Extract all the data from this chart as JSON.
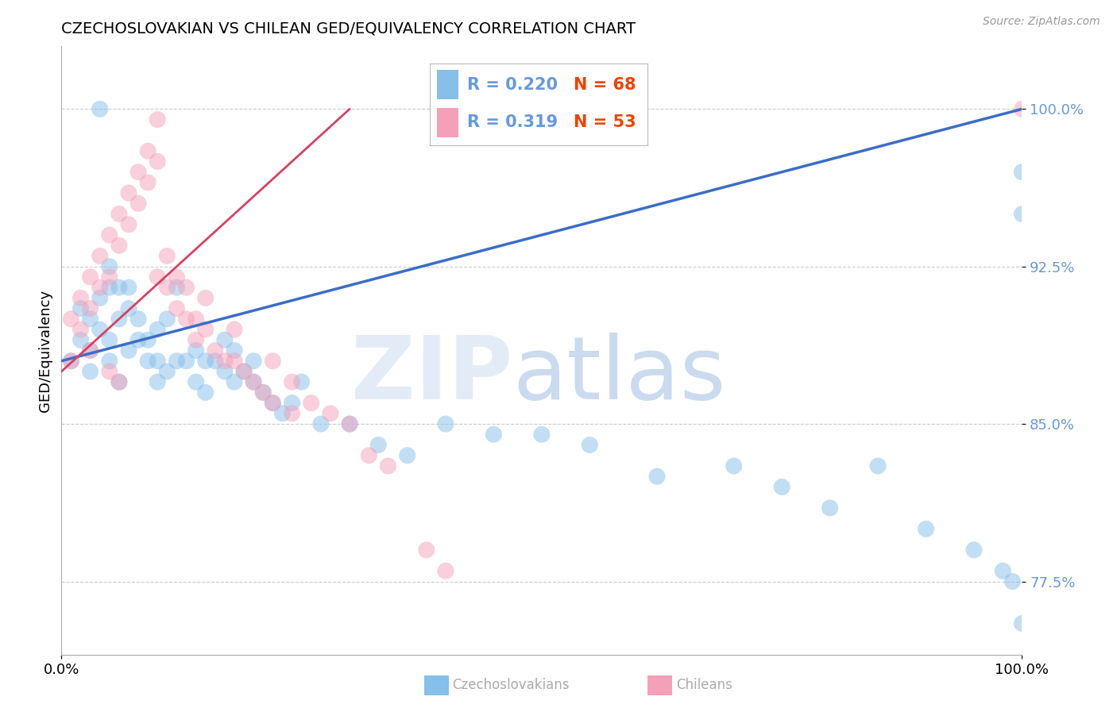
{
  "title": "CZECHOSLOVAKIAN VS CHILEAN GED/EQUIVALENCY CORRELATION CHART",
  "source": "Source: ZipAtlas.com",
  "ylabel": "GED/Equivalency",
  "xlim": [
    0,
    100
  ],
  "ylim": [
    74,
    103
  ],
  "yticks": [
    77.5,
    85.0,
    92.5,
    100.0
  ],
  "xticks": [
    0,
    100
  ],
  "xticklabels": [
    "0.0%",
    "100.0%"
  ],
  "legend_r1": "R = 0.220",
  "legend_n1": "N = 68",
  "legend_r2": "R = 0.319",
  "legend_n2": "N = 53",
  "legend_label1": "Czechoslovakians",
  "legend_label2": "Chileans",
  "blue_color": "#85BFEA",
  "pink_color": "#F4A0B8",
  "blue_line_color": "#3B6DC8",
  "pink_line_color": "#D94060",
  "ytick_color": "#6699DD",
  "grid_color": "#CCCCCC",
  "blue_trend": [
    0,
    88.0,
    100,
    100.0
  ],
  "pink_trend": [
    0,
    87.5,
    30,
    100.0
  ],
  "blue_x": [
    1,
    2,
    2,
    3,
    3,
    3,
    4,
    4,
    4,
    5,
    5,
    5,
    5,
    6,
    6,
    6,
    7,
    7,
    7,
    8,
    8,
    9,
    9,
    10,
    10,
    10,
    11,
    11,
    12,
    12,
    13,
    14,
    14,
    15,
    15,
    16,
    17,
    17,
    18,
    18,
    19,
    20,
    20,
    21,
    22,
    23,
    24,
    25,
    27,
    30,
    33,
    36,
    40,
    45,
    50,
    55,
    62,
    70,
    75,
    80,
    85,
    90,
    95,
    98,
    99,
    100,
    100,
    100
  ],
  "blue_y": [
    88.0,
    89.0,
    90.5,
    87.5,
    88.5,
    90.0,
    89.5,
    91.0,
    100.0,
    91.5,
    92.5,
    88.0,
    89.0,
    90.0,
    91.5,
    87.0,
    88.5,
    90.5,
    91.5,
    89.0,
    90.0,
    88.0,
    89.0,
    87.0,
    88.0,
    89.5,
    87.5,
    90.0,
    88.0,
    91.5,
    88.0,
    87.0,
    88.5,
    86.5,
    88.0,
    88.0,
    87.5,
    89.0,
    87.0,
    88.5,
    87.5,
    87.0,
    88.0,
    86.5,
    86.0,
    85.5,
    86.0,
    87.0,
    85.0,
    85.0,
    84.0,
    83.5,
    85.0,
    84.5,
    84.5,
    84.0,
    82.5,
    83.0,
    82.0,
    81.0,
    83.0,
    80.0,
    79.0,
    78.0,
    77.5,
    75.5,
    95.0,
    97.0
  ],
  "pink_x": [
    1,
    1,
    2,
    2,
    3,
    3,
    3,
    4,
    4,
    5,
    5,
    5,
    6,
    6,
    6,
    7,
    7,
    8,
    8,
    9,
    9,
    10,
    10,
    10,
    11,
    11,
    12,
    12,
    13,
    13,
    14,
    14,
    15,
    15,
    16,
    17,
    18,
    18,
    19,
    20,
    21,
    22,
    22,
    24,
    24,
    26,
    28,
    30,
    32,
    34,
    38,
    40,
    100
  ],
  "pink_y": [
    88.0,
    90.0,
    89.5,
    91.0,
    90.5,
    92.0,
    88.5,
    91.5,
    93.0,
    92.0,
    94.0,
    87.5,
    93.5,
    95.0,
    87.0,
    94.5,
    96.0,
    95.5,
    97.0,
    96.5,
    98.0,
    92.0,
    97.5,
    99.5,
    91.5,
    93.0,
    90.5,
    92.0,
    90.0,
    91.5,
    89.0,
    90.0,
    89.5,
    91.0,
    88.5,
    88.0,
    88.0,
    89.5,
    87.5,
    87.0,
    86.5,
    86.0,
    88.0,
    85.5,
    87.0,
    86.0,
    85.5,
    85.0,
    83.5,
    83.0,
    79.0,
    78.0,
    100.0
  ]
}
